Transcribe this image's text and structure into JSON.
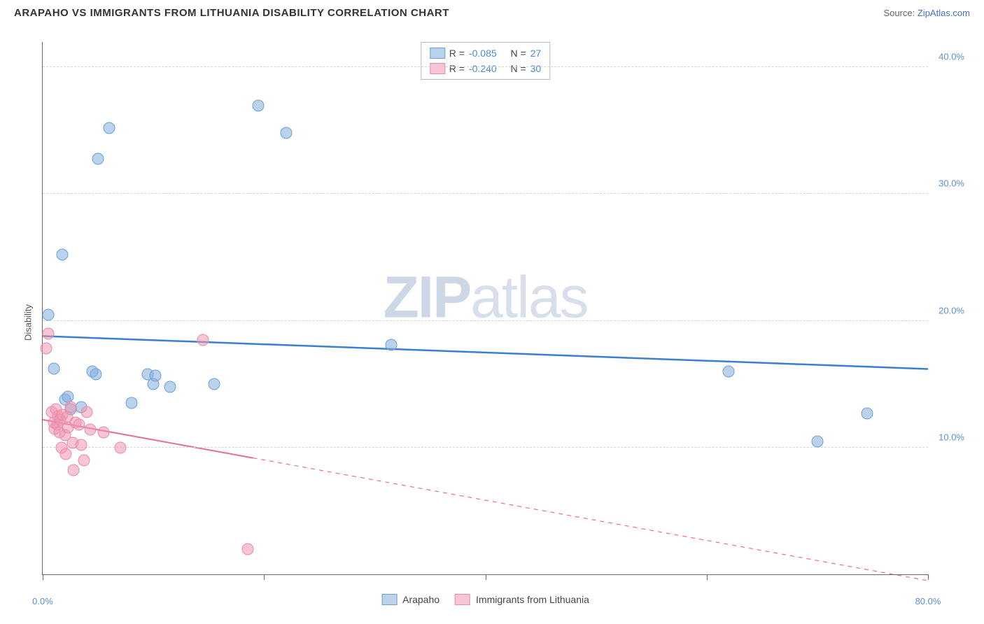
{
  "header": {
    "title": "ARAPAHO VS IMMIGRANTS FROM LITHUANIA DISABILITY CORRELATION CHART",
    "source_prefix": "Source: ",
    "source_link": "ZipAtlas.com"
  },
  "chart": {
    "type": "scatter",
    "ylabel": "Disability",
    "xlim": [
      0,
      80
    ],
    "ylim": [
      0,
      42
    ],
    "x_ticks": [
      0,
      20,
      40,
      60,
      80
    ],
    "x_tick_labels": {
      "0": "0.0%",
      "80": "80.0%"
    },
    "y_gridlines": [
      10,
      20,
      30,
      40
    ],
    "y_tick_labels": {
      "10": "10.0%",
      "20": "20.0%",
      "30": "30.0%",
      "40": "40.0%"
    },
    "background_color": "#ffffff",
    "grid_color": "#d5d5d5",
    "axis_color": "#666666",
    "marker_radius": 8.5,
    "watermark": {
      "text_a": "ZIP",
      "text_b": "atlas",
      "color": "#cfd8e6",
      "fontsize": 84
    },
    "series": [
      {
        "name": "Arapaho",
        "color_fill": "rgba(131,173,222,0.55)",
        "color_stroke": "#6a9fd8",
        "r_value": "-0.085",
        "n_value": "27",
        "trend": {
          "x1": 0,
          "y1": 18.8,
          "x2": 80,
          "y2": 16.2,
          "solid_until_x": 80,
          "stroke": "#3b7fd1",
          "width": 2.5
        },
        "points": [
          [
            0.5,
            20.5
          ],
          [
            1.0,
            16.2
          ],
          [
            1.8,
            25.2
          ],
          [
            2.0,
            13.8
          ],
          [
            2.3,
            14.0
          ],
          [
            2.5,
            13.0
          ],
          [
            3.5,
            13.2
          ],
          [
            4.5,
            16.0
          ],
          [
            4.8,
            15.8
          ],
          [
            5.0,
            32.8
          ],
          [
            6.0,
            35.2
          ],
          [
            8.0,
            13.5
          ],
          [
            9.5,
            15.8
          ],
          [
            10.0,
            15.0
          ],
          [
            10.2,
            15.7
          ],
          [
            11.5,
            14.8
          ],
          [
            15.5,
            15.0
          ],
          [
            19.5,
            37.0
          ],
          [
            22.0,
            34.8
          ],
          [
            31.5,
            18.1
          ],
          [
            62.0,
            16.0
          ],
          [
            70.0,
            10.5
          ],
          [
            74.5,
            12.7
          ]
        ]
      },
      {
        "name": "Immigrants from Lithuania",
        "color_fill": "rgba(240,150,175,0.55)",
        "color_stroke": "#e88aa8",
        "r_value": "-0.240",
        "n_value": "30",
        "trend": {
          "x1": 0,
          "y1": 12.2,
          "x2": 80,
          "y2": -0.5,
          "solid_until_x": 19,
          "stroke": "#e66f97",
          "width": 2
        },
        "points": [
          [
            0.3,
            17.8
          ],
          [
            0.5,
            19.0
          ],
          [
            0.8,
            12.8
          ],
          [
            1.0,
            12.0
          ],
          [
            1.1,
            11.5
          ],
          [
            1.2,
            13.0
          ],
          [
            1.3,
            11.8
          ],
          [
            1.4,
            12.5
          ],
          [
            1.5,
            11.2
          ],
          [
            1.6,
            12.2
          ],
          [
            1.7,
            10.0
          ],
          [
            1.8,
            12.6
          ],
          [
            2.0,
            11.0
          ],
          [
            2.1,
            9.5
          ],
          [
            2.2,
            12.4
          ],
          [
            2.3,
            11.6
          ],
          [
            2.5,
            13.2
          ],
          [
            2.7,
            10.4
          ],
          [
            2.8,
            8.2
          ],
          [
            3.0,
            12.0
          ],
          [
            3.3,
            11.8
          ],
          [
            3.5,
            10.2
          ],
          [
            3.7,
            9.0
          ],
          [
            4.0,
            12.8
          ],
          [
            4.3,
            11.4
          ],
          [
            5.5,
            11.2
          ],
          [
            7.0,
            10.0
          ],
          [
            14.5,
            18.5
          ],
          [
            18.5,
            2.0
          ]
        ]
      }
    ],
    "stats_legend": {
      "r_label": "R =",
      "n_label": "N ="
    },
    "bottom_legend": [
      {
        "swatch": "blue",
        "label": "Arapaho"
      },
      {
        "swatch": "pink",
        "label": "Immigrants from Lithuania"
      }
    ]
  }
}
